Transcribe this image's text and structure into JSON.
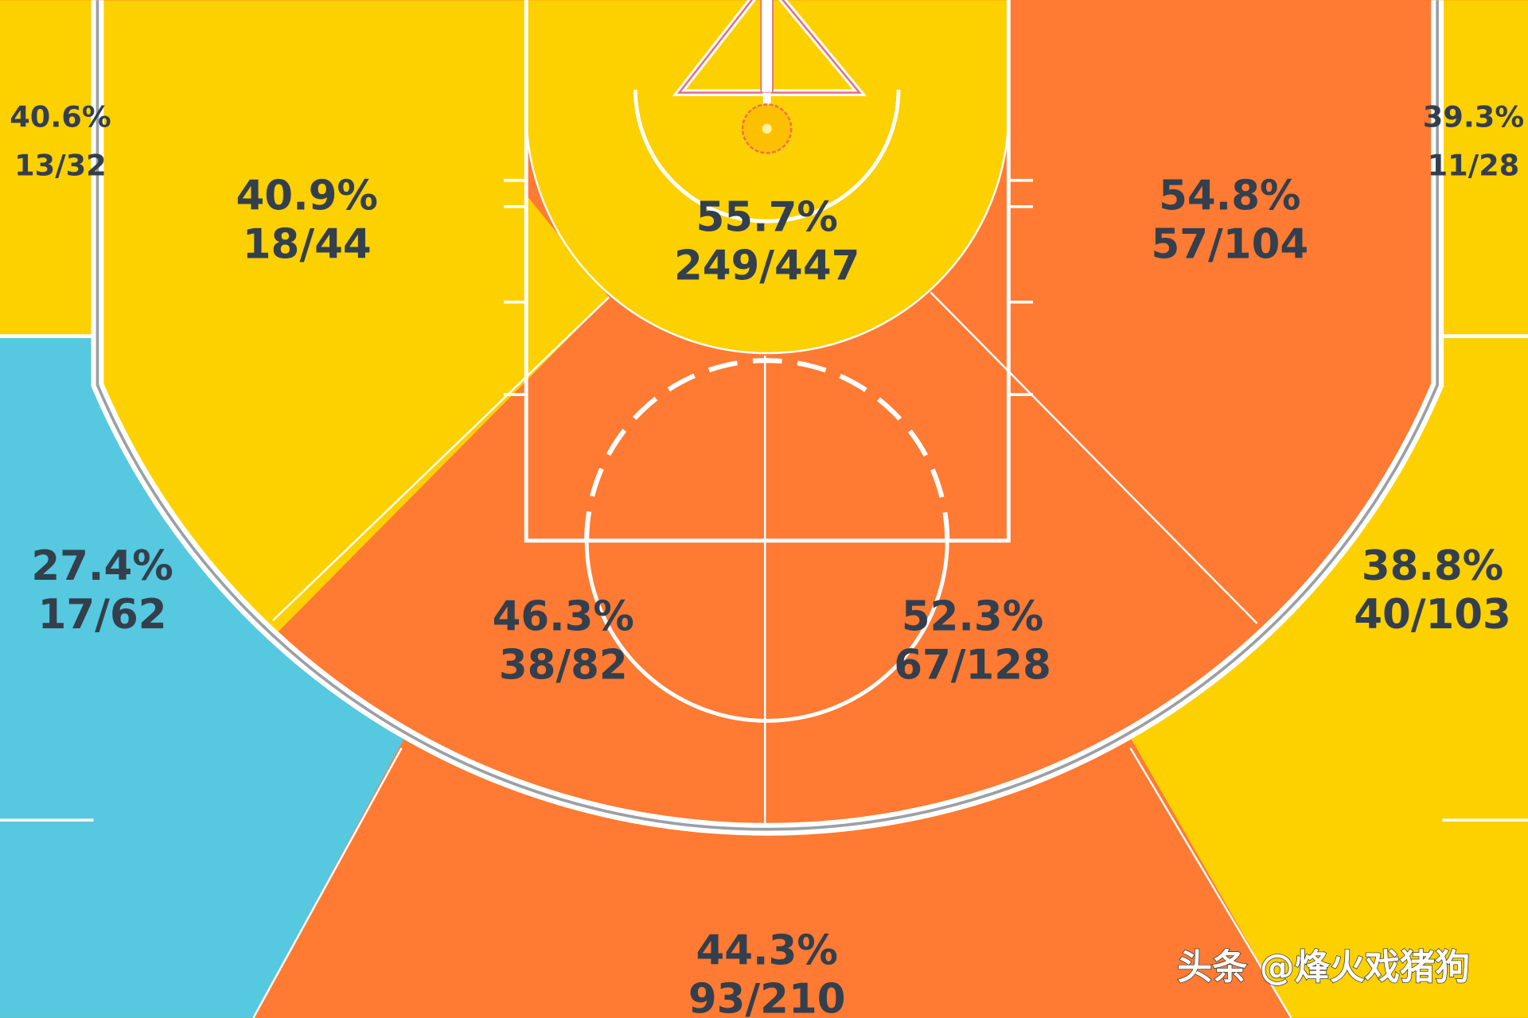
{
  "chart_data": {
    "type": "heatmap",
    "title": "",
    "colors": {
      "yellow": "#FDD000",
      "orange": "#FF7A33",
      "cyan": "#56C8DF",
      "text": "#333F4D",
      "line": "#FFFFFF"
    },
    "zones": [
      {
        "id": "left-corner-3",
        "pct": "40.6%",
        "made_attempts": "13/32",
        "color": "#FDD000"
      },
      {
        "id": "right-corner-3",
        "pct": "39.3%",
        "made_attempts": "11/28",
        "color": "#FDD000"
      },
      {
        "id": "left-baseline-mid",
        "pct": "40.9%",
        "made_attempts": "18/44",
        "color": "#FDD000"
      },
      {
        "id": "restricted-area",
        "pct": "55.7%",
        "made_attempts": "249/447",
        "color": "#FDD000"
      },
      {
        "id": "right-baseline-mid",
        "pct": "54.8%",
        "made_attempts": "57/104",
        "color": "#FF7A33"
      },
      {
        "id": "left-wing-3",
        "pct": "27.4%",
        "made_attempts": "17/62",
        "color": "#56C8DF"
      },
      {
        "id": "left-center-mid",
        "pct": "46.3%",
        "made_attempts": "38/82",
        "color": "#FF7A33"
      },
      {
        "id": "right-center-mid",
        "pct": "52.3%",
        "made_attempts": "67/128",
        "color": "#FF7A33"
      },
      {
        "id": "right-wing-3",
        "pct": "38.8%",
        "made_attempts": "40/103",
        "color": "#FDD000"
      },
      {
        "id": "top-of-key-3",
        "pct": "44.3%",
        "made_attempts": "93/210",
        "color": "#FF7A33"
      }
    ]
  },
  "watermark": "头条 @烽火戏猪狗"
}
